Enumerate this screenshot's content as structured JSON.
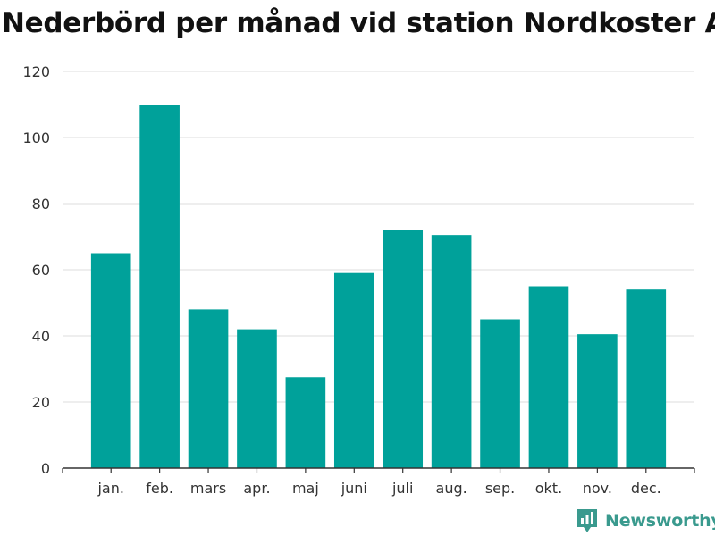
{
  "chart_data": {
    "type": "bar",
    "title": "Nederbörd per månad vid station Nordkoster A",
    "categories": [
      "jan.",
      "feb.",
      "mars",
      "apr.",
      "maj",
      "juni",
      "juli",
      "aug.",
      "sep.",
      "okt.",
      "nov.",
      "dec."
    ],
    "values": [
      65,
      110,
      48,
      42,
      27.5,
      59,
      72,
      70.5,
      45,
      55,
      40.5,
      54
    ],
    "xlabel": "",
    "ylabel": "",
    "ylim": [
      0,
      120
    ],
    "yticks": [
      0,
      20,
      40,
      60,
      80,
      100,
      120
    ],
    "grid": true,
    "legend": "none"
  },
  "colors": {
    "bar": "#00a19a",
    "brand": "#3a9a8e"
  },
  "branding": {
    "name": "Newsworthy",
    "icon": "newsworthy-logo-icon"
  }
}
